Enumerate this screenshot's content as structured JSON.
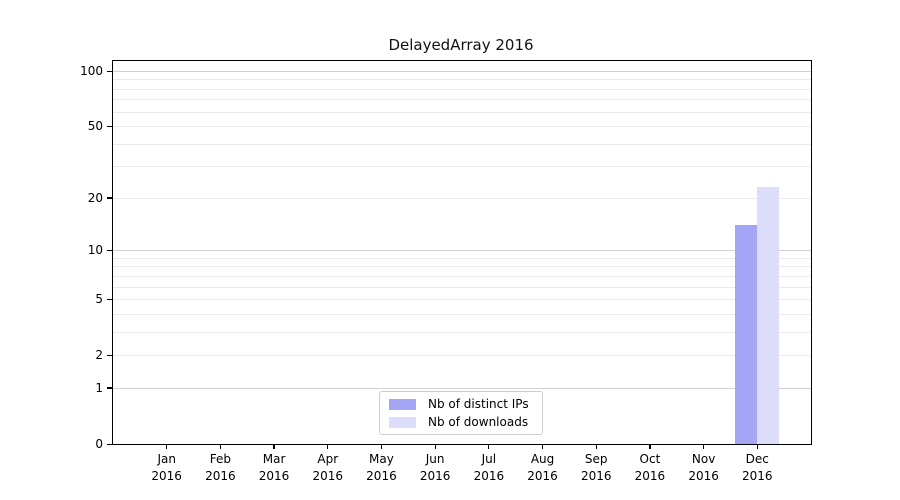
{
  "chart_data": {
    "type": "bar",
    "title": "DelayedArray 2016",
    "categories": [
      "Jan",
      "Feb",
      "Mar",
      "Apr",
      "May",
      "Jun",
      "Jul",
      "Aug",
      "Sep",
      "Oct",
      "Nov",
      "Dec"
    ],
    "category_year": "2016",
    "series": [
      {
        "name": "Nb of distinct IPs",
        "color": "#a5a5f5",
        "values": [
          0,
          0,
          0,
          0,
          0,
          0,
          0,
          0,
          0,
          0,
          0,
          14
        ]
      },
      {
        "name": "Nb of downloads",
        "color": "#dcdcfb",
        "values": [
          0,
          0,
          0,
          0,
          0,
          0,
          0,
          0,
          0,
          0,
          0,
          23
        ]
      }
    ],
    "yscale": "log1p",
    "ylim": [
      0,
      113
    ],
    "yticks": [
      0,
      1,
      2,
      5,
      10,
      20,
      50,
      100
    ],
    "gridlines": {
      "major": [
        1,
        10,
        100
      ],
      "minor": [
        2,
        3,
        4,
        5,
        6,
        7,
        8,
        9,
        20,
        30,
        40,
        50,
        60,
        70,
        80,
        90
      ]
    },
    "legend_position": "lower center",
    "grid_on": true,
    "colors": {
      "frame": "#000000",
      "major_grid": "#d2d2d2",
      "minor_grid": "#ebebeb",
      "legend_border": "#cccccc",
      "text": "#000000"
    }
  }
}
